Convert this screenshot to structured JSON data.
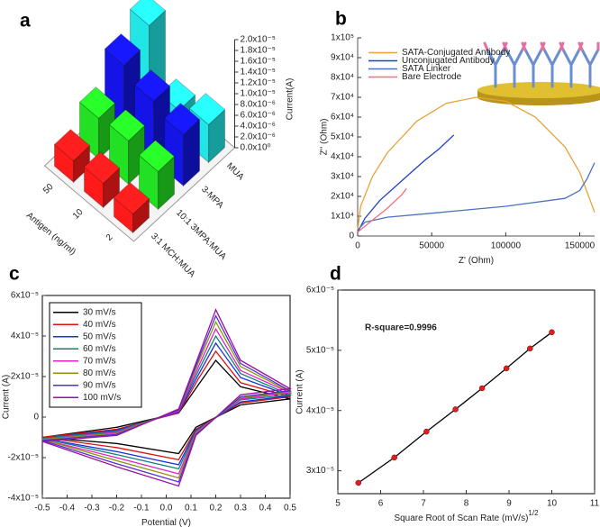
{
  "chart_data": [
    {
      "type": "bar3d",
      "panel_label": "a",
      "x_label": "Antigen (ng/ml)",
      "y_label": "Current(A)",
      "categories": [
        "50",
        "10",
        "2"
      ],
      "series": [
        {
          "name": "3:1 MCH:MUA",
          "color": "#ff1a1a",
          "values": [
            4e-06,
            4.5e-06,
            3.5e-06
          ]
        },
        {
          "name": "10:1 3MPA:MUA",
          "color": "#22e022",
          "values": [
            7.5e-06,
            8e-06,
            7e-06
          ]
        },
        {
          "name": "3-MPA",
          "color": "#1414e6",
          "values": [
            1.3e-05,
            1.1e-05,
            9.5e-06
          ]
        },
        {
          "name": "MUA",
          "color": "#22e6e6",
          "values": [
            1.6e-05,
            5e-06,
            7e-06
          ]
        }
      ],
      "ylim": [
        0,
        2e-05
      ],
      "yticks": [
        {
          "value": 0,
          "label": "0.0x10⁰"
        },
        {
          "value": 2e-06,
          "label": "2.0x10⁻⁶"
        },
        {
          "value": 4e-06,
          "label": "4.0x10⁻⁶"
        },
        {
          "value": 6e-06,
          "label": "6.0x10⁻⁶"
        },
        {
          "value": 8e-06,
          "label": "8.0x10⁻⁶"
        },
        {
          "value": 1e-05,
          "label": "1.0x10⁻⁵"
        },
        {
          "value": 1.2e-05,
          "label": "1.2x10⁻⁵"
        },
        {
          "value": 1.4e-05,
          "label": "1.4x10⁻⁵"
        },
        {
          "value": 1.6e-05,
          "label": "1.6x10⁻⁵"
        },
        {
          "value": 1.8e-05,
          "label": "1.8x10⁻⁵"
        },
        {
          "value": 2e-05,
          "label": "2.0x10⁻⁵"
        }
      ]
    },
    {
      "type": "line",
      "panel_label": "b",
      "x_label": "Z' (Ohm)",
      "y_label": "Z'' (Ohm)",
      "legend": "upper left",
      "series": [
        {
          "name": "SATA-Conjugated Antibody",
          "color": "#e8a33a",
          "x": [
            0,
            2000,
            10000,
            20000,
            40000,
            60000,
            80000,
            100000,
            120000,
            140000,
            150000,
            155000,
            160000
          ],
          "values": [
            3000,
            15000,
            30000,
            42000,
            58000,
            67000,
            70000,
            68000,
            60000,
            45000,
            32000,
            22000,
            12000
          ]
        },
        {
          "name": "Unconjugated Antibody",
          "color": "#2040c8",
          "x": [
            0,
            5000,
            15000,
            30000,
            45000,
            55000,
            65000
          ],
          "values": [
            2000,
            9000,
            18000,
            28000,
            38000,
            44000,
            51000
          ]
        },
        {
          "name": "SATA Linker",
          "color": "#4a72c0",
          "x": [
            0,
            5000,
            20000,
            50000,
            100000,
            140000,
            150000,
            155000,
            160000
          ],
          "values": [
            3000,
            7000,
            9500,
            11500,
            15000,
            19000,
            23000,
            29000,
            37000
          ]
        },
        {
          "name": "Bare Electrode",
          "color": "#f07080",
          "x": [
            0,
            5000,
            10000,
            20000,
            30000,
            33000
          ],
          "values": [
            2000,
            5000,
            8000,
            14000,
            21000,
            24000
          ]
        }
      ],
      "xlim": [
        0,
        160000
      ],
      "xticks": [
        0,
        50000,
        100000,
        150000
      ],
      "ylim": [
        0,
        100000
      ],
      "yticks": [
        0,
        {
          "value": 10000,
          "label": "1x10⁴"
        },
        {
          "value": 20000,
          "label": "2x10⁴"
        },
        {
          "value": 30000,
          "label": "3x10⁴"
        },
        {
          "value": 40000,
          "label": "4x10⁴"
        },
        {
          "value": 50000,
          "label": "5x10⁴"
        },
        {
          "value": 60000,
          "label": "6x10⁴"
        },
        {
          "value": 70000,
          "label": "7x10⁴"
        },
        {
          "value": 80000,
          "label": "8x10⁴"
        },
        {
          "value": 90000,
          "label": "9x10⁴"
        },
        {
          "value": 100000,
          "label": "1x10⁵"
        }
      ]
    },
    {
      "type": "line",
      "panel_label": "c",
      "x_label": "Potential (V)",
      "y_label": "Current (A)",
      "legend": "upper left",
      "legend_frame": true,
      "x": [
        -0.5,
        -0.2,
        0.05,
        0.13,
        0.2,
        0.3,
        0.5,
        0.3,
        0.12,
        0.05,
        -0.2,
        -0.5
      ],
      "series": [
        {
          "name": "30 mV/s",
          "color": "#000000",
          "values": [
            -1e-05,
            -5e-06,
            2e-06,
            1.6e-05,
            2.8e-05,
            1.5e-05,
            9e-06,
            6e-06,
            -5e-06,
            -1.8e-05,
            -1.3e-05,
            -1e-05
          ]
        },
        {
          "name": "40 mV/s",
          "color": "#e01010",
          "values": [
            -1e-05,
            -6e-06,
            2e-06,
            1.9e-05,
            3.25e-05,
            1.7e-05,
            1e-05,
            7e-06,
            -6e-06,
            -2.1e-05,
            -1.5e-05,
            -1e-05
          ]
        },
        {
          "name": "50 mV/s",
          "color": "#1830e0",
          "values": [
            -1.05e-05,
            -6.5e-06,
            2.5e-06,
            2.1e-05,
            3.65e-05,
            1.95e-05,
            1.05e-05,
            7.5e-06,
            -6.5e-06,
            -2.35e-05,
            -1.7e-05,
            -1.05e-05
          ]
        },
        {
          "name": "60 mV/s",
          "color": "#108080",
          "values": [
            -1.05e-05,
            -7e-06,
            3e-06,
            2.3e-05,
            4e-05,
            2.15e-05,
            1.1e-05,
            8.5e-06,
            -7e-06,
            -2.55e-05,
            -1.85e-05,
            -1.05e-05
          ]
        },
        {
          "name": "70 mV/s",
          "color": "#e020c0",
          "values": [
            -1.1e-05,
            -7.5e-06,
            3e-06,
            2.5e-05,
            4.35e-05,
            2.3e-05,
            1.2e-05,
            9e-06,
            -7.5e-06,
            -2.8e-05,
            -2e-05,
            -1.1e-05
          ]
        },
        {
          "name": "80 mV/s",
          "color": "#909010",
          "values": [
            -1.1e-05,
            -8e-06,
            3.5e-06,
            2.7e-05,
            4.7e-05,
            2.5e-05,
            1.25e-05,
            9.5e-06,
            -8e-06,
            -3e-05,
            -2.15e-05,
            -1.1e-05
          ]
        },
        {
          "name": "90 mV/s",
          "color": "#5030d0",
          "values": [
            -1.15e-05,
            -8.5e-06,
            3.5e-06,
            2.85e-05,
            5e-05,
            2.65e-05,
            1.3e-05,
            1e-05,
            -8.5e-06,
            -3.2e-05,
            -2.3e-05,
            -1.15e-05
          ]
        },
        {
          "name": "100 mV/s",
          "color": "#9a10a0",
          "values": [
            -1.2e-05,
            -9e-06,
            4e-06,
            3e-05,
            5.3e-05,
            2.8e-05,
            1.4e-05,
            1.1e-05,
            -9e-06,
            -3.4e-05,
            -2.45e-05,
            -1.2e-05
          ]
        }
      ],
      "xlim": [
        -0.5,
        0.5
      ],
      "xticks": [
        -0.5,
        -0.4,
        -0.3,
        -0.2,
        -0.1,
        {
          "value": 0,
          "label": "0.0"
        },
        0.1,
        0.2,
        0.3,
        0.4,
        0.5
      ],
      "ylim": [
        -4e-05,
        6e-05
      ],
      "yticks": [
        {
          "value": -4e-05,
          "label": "-4x10⁻⁵"
        },
        {
          "value": -2e-05,
          "label": "-2x10⁻⁵"
        },
        0,
        {
          "value": 2e-05,
          "label": "2x10⁻⁵"
        },
        {
          "value": 4e-05,
          "label": "4x10⁻⁵"
        },
        {
          "value": 6e-05,
          "label": "6x10⁻⁵"
        }
      ]
    },
    {
      "type": "line",
      "panel_label": "d",
      "x_label": "Square Root of Scan Rate (mV/s)",
      "x_label_exponent": "1/2",
      "y_label": "Current (A)",
      "annotation": "R-square=0.9996",
      "markers": true,
      "color": "#000000",
      "marker_color": "#e02020",
      "x": [
        5.48,
        6.32,
        7.07,
        7.75,
        8.37,
        8.94,
        9.49,
        10.0
      ],
      "values": [
        2.8e-05,
        3.22e-05,
        3.65e-05,
        4.02e-05,
        4.37e-05,
        4.7e-05,
        5.03e-05,
        5.3e-05
      ],
      "xlim": [
        5,
        11
      ],
      "xticks": [
        5,
        6,
        7,
        8,
        9,
        10,
        11
      ],
      "ylim": [
        2.62e-05,
        6e-05
      ],
      "yticks": [
        {
          "value": 3e-05,
          "label": "3x10⁻⁵"
        },
        {
          "value": 4e-05,
          "label": "4x10⁻⁵"
        },
        {
          "value": 5e-05,
          "label": "5x10⁻⁵"
        },
        {
          "value": 6e-05,
          "label": "6x10⁻⁵"
        }
      ]
    }
  ]
}
